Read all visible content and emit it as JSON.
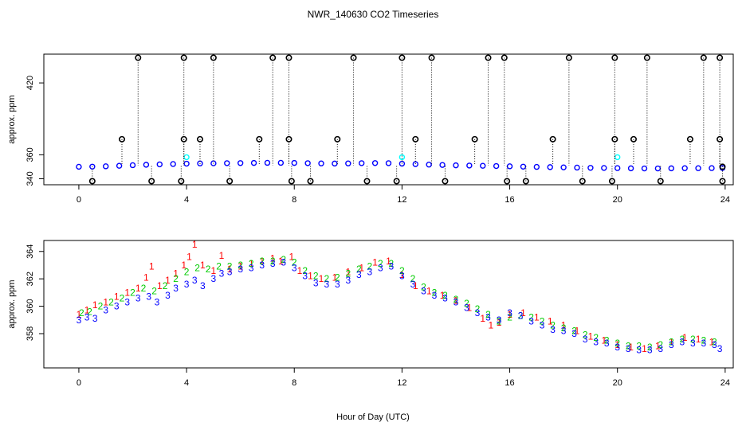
{
  "chart_data": [
    {
      "type": "scatter",
      "title": "NWR_140630  CO2 Timeseries",
      "xlabel": "",
      "ylabel": "approx. ppm",
      "xlim": [
        -1.3,
        24.3
      ],
      "ylim": [
        335,
        444
      ],
      "xticks": [
        0,
        4,
        8,
        12,
        16,
        20,
        24
      ],
      "yticks": [
        340,
        360,
        420
      ],
      "series": [
        {
          "color": "#0000ff",
          "marker": "circle",
          "x": [
            0.0,
            0.5,
            1.0,
            1.5,
            2.0,
            2.5,
            3.0,
            3.5,
            4.0,
            4.5,
            5.0,
            5.5,
            6.0,
            6.5,
            7.0,
            7.5,
            8.0,
            8.5,
            9.0,
            9.5,
            10.0,
            10.5,
            11.0,
            11.5,
            12.0,
            12.5,
            13.0,
            13.5,
            14.0,
            14.5,
            15.0,
            15.5,
            16.0,
            16.5,
            17.0,
            17.5,
            18.0,
            18.5,
            19.0,
            19.5,
            20.0,
            20.5,
            21.0,
            21.5,
            22.0,
            22.5,
            23.0,
            23.5,
            23.9
          ],
          "y": [
            350.0,
            350.1,
            350.4,
            350.8,
            351.3,
            351.7,
            352.0,
            352.3,
            352.6,
            352.8,
            352.9,
            353.0,
            353.1,
            353.2,
            353.3,
            353.3,
            353.2,
            353.0,
            352.8,
            352.7,
            352.8,
            353.0,
            353.1,
            353.0,
            352.6,
            352.2,
            351.8,
            351.5,
            351.2,
            351.0,
            350.8,
            350.6,
            350.4,
            350.1,
            349.9,
            349.7,
            349.5,
            349.3,
            349.1,
            349.0,
            348.9,
            348.7,
            348.6,
            348.6,
            348.7,
            348.8,
            348.8,
            348.9,
            349.0
          ]
        },
        {
          "color": "#00ffff",
          "marker": "circle",
          "x": [
            4.0,
            12.0,
            20.0
          ],
          "y": [
            358,
            358,
            358
          ]
        },
        {
          "color": "#000000",
          "marker": "circle-dotted-drop",
          "x": [
            2.2,
            3.9,
            5.0,
            7.2,
            7.8,
            10.2,
            12.0,
            13.1,
            15.2,
            15.8,
            18.2,
            19.9,
            21.1,
            23.2,
            23.8,
            1.6,
            3.9,
            4.5,
            6.7,
            7.8,
            9.6,
            12.5,
            14.7,
            17.6,
            19.9,
            20.6,
            22.7,
            23.8,
            0.5,
            2.7,
            3.8,
            5.6,
            7.9,
            8.6,
            10.7,
            11.8,
            13.6,
            15.9,
            16.6,
            18.7,
            19.8,
            21.6,
            23.9,
            23.9
          ],
          "y": [
            441,
            441,
            441,
            441,
            441,
            441,
            441,
            441,
            441,
            441,
            441,
            441,
            441,
            441,
            441,
            373,
            373,
            373,
            373,
            373,
            373,
            373,
            373,
            373,
            373,
            373,
            373,
            373,
            338,
            338,
            338,
            338,
            338,
            338,
            338,
            338,
            338,
            338,
            338,
            338,
            338,
            338,
            338,
            350
          ]
        }
      ]
    },
    {
      "type": "scatter",
      "title": "",
      "xlabel": "Hour of Day (UTC)",
      "ylabel": "approx. ppm",
      "xlim": [
        -1.3,
        24.3
      ],
      "ylim": [
        355.5,
        364.8
      ],
      "xticks": [
        0,
        4,
        8,
        12,
        16,
        20,
        24
      ],
      "yticks": [
        358,
        360,
        362,
        364
      ],
      "series": [
        {
          "label_char": "1",
          "color": "#ff0000",
          "x": [
            0.0,
            0.3,
            0.6,
            1.0,
            1.4,
            1.8,
            2.2,
            2.5,
            2.7,
            3.0,
            3.3,
            3.6,
            3.9,
            4.1,
            4.3,
            4.6,
            5.0,
            5.3,
            5.6,
            6.0,
            6.4,
            6.8,
            7.2,
            7.5,
            7.9,
            8.2,
            8.6,
            9.0,
            9.5,
            10.0,
            10.5,
            11.0,
            11.5,
            12.0,
            12.5,
            13.0,
            13.5,
            14.0,
            14.5,
            15.0,
            15.3,
            15.6,
            16.0,
            16.5,
            17.0,
            17.5,
            18.0,
            18.5,
            19.0,
            19.5,
            20.0,
            20.5,
            21.0,
            21.5,
            22.0,
            22.5,
            23.0,
            23.5
          ],
          "y": [
            359.4,
            359.7,
            360.1,
            360.3,
            360.7,
            361.0,
            361.3,
            362.1,
            362.9,
            361.5,
            361.9,
            362.4,
            363.0,
            363.6,
            364.5,
            363.0,
            362.6,
            363.7,
            362.7,
            362.9,
            363.1,
            363.3,
            363.5,
            363.3,
            363.6,
            362.6,
            362.2,
            362.0,
            362.1,
            362.5,
            362.8,
            363.2,
            363.3,
            362.3,
            361.5,
            361.1,
            360.8,
            360.4,
            359.9,
            359.1,
            358.6,
            358.8,
            359.4,
            359.5,
            359.2,
            358.9,
            358.6,
            358.2,
            357.8,
            357.5,
            357.2,
            357.0,
            356.9,
            357.1,
            357.4,
            357.7,
            357.6,
            357.4
          ]
        },
        {
          "label_char": "2",
          "color": "#00cc00",
          "x": [
            0.1,
            0.4,
            0.8,
            1.2,
            1.6,
            2.0,
            2.4,
            2.8,
            3.2,
            3.6,
            4.0,
            4.4,
            4.8,
            5.2,
            5.6,
            6.0,
            6.4,
            6.8,
            7.2,
            7.6,
            8.0,
            8.4,
            8.8,
            9.2,
            9.6,
            10.0,
            10.4,
            10.8,
            11.2,
            11.6,
            12.0,
            12.4,
            12.8,
            13.2,
            13.6,
            14.0,
            14.4,
            14.8,
            15.2,
            15.6,
            16.0,
            16.4,
            16.8,
            17.2,
            17.6,
            18.0,
            18.4,
            18.8,
            19.2,
            19.6,
            20.0,
            20.4,
            20.8,
            21.2,
            21.6,
            22.0,
            22.4,
            22.8,
            23.2,
            23.6
          ],
          "y": [
            359.5,
            359.6,
            360.0,
            360.3,
            360.6,
            361.0,
            361.3,
            361.1,
            361.5,
            362.0,
            362.5,
            362.8,
            362.7,
            362.9,
            362.9,
            363.0,
            363.1,
            363.3,
            363.3,
            363.4,
            363.2,
            362.6,
            362.2,
            362.0,
            362.1,
            362.4,
            362.7,
            362.9,
            363.1,
            363.1,
            362.6,
            362.0,
            361.4,
            361.0,
            360.8,
            360.5,
            360.2,
            359.8,
            359.4,
            358.9,
            359.2,
            359.3,
            359.2,
            358.9,
            358.6,
            358.4,
            358.2,
            357.9,
            357.7,
            357.5,
            357.3,
            357.1,
            357.1,
            357.0,
            357.2,
            357.4,
            357.6,
            357.6,
            357.5,
            357.4
          ]
        },
        {
          "label_char": "3",
          "color": "#0000ff",
          "x": [
            0.0,
            0.3,
            0.6,
            1.0,
            1.4,
            1.8,
            2.2,
            2.6,
            2.9,
            3.3,
            3.6,
            4.0,
            4.3,
            4.6,
            5.0,
            5.3,
            5.6,
            6.0,
            6.4,
            6.8,
            7.2,
            7.6,
            8.0,
            8.4,
            8.8,
            9.2,
            9.6,
            10.0,
            10.4,
            10.8,
            11.2,
            11.6,
            12.0,
            12.4,
            12.8,
            13.2,
            13.6,
            14.0,
            14.4,
            14.8,
            15.2,
            15.6,
            16.0,
            16.4,
            16.8,
            17.2,
            17.6,
            18.0,
            18.4,
            18.8,
            19.2,
            19.6,
            20.0,
            20.4,
            20.8,
            21.2,
            21.6,
            22.0,
            22.4,
            22.8,
            23.2,
            23.6,
            23.8
          ],
          "y": [
            359.0,
            359.2,
            359.1,
            359.7,
            360.0,
            360.3,
            360.6,
            360.7,
            360.3,
            360.8,
            361.3,
            361.6,
            361.9,
            361.5,
            362.0,
            362.4,
            362.5,
            362.7,
            362.8,
            363.0,
            363.1,
            363.2,
            362.8,
            362.2,
            361.7,
            361.6,
            361.6,
            361.9,
            362.3,
            362.5,
            362.8,
            362.9,
            362.2,
            361.6,
            361.1,
            360.8,
            360.6,
            360.3,
            359.9,
            359.5,
            359.2,
            359.0,
            359.5,
            359.3,
            358.9,
            358.6,
            358.3,
            358.2,
            358.0,
            357.6,
            357.4,
            357.3,
            357.0,
            356.9,
            356.8,
            356.8,
            356.9,
            357.2,
            357.4,
            357.3,
            357.3,
            357.2,
            356.9
          ]
        }
      ]
    }
  ]
}
